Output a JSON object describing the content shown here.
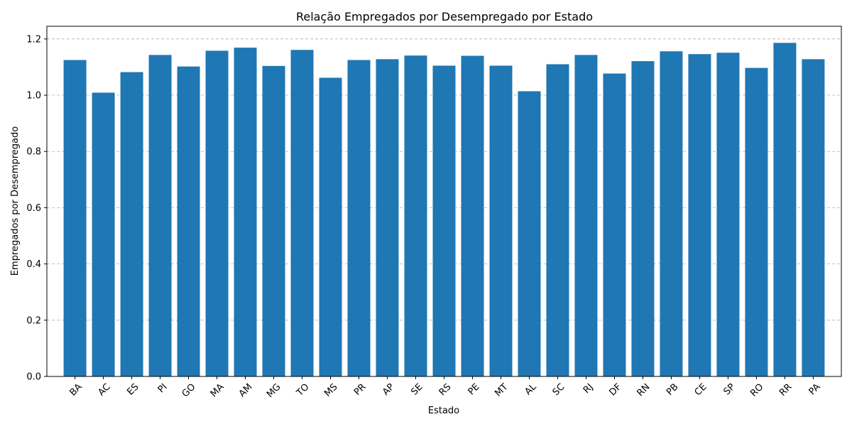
{
  "chart_data": {
    "type": "bar",
    "title": "Relação Empregados por Desempregado por Estado",
    "xlabel": "Estado",
    "ylabel": "Empregados por Desempregado",
    "categories": [
      "BA",
      "AC",
      "ES",
      "PI",
      "GO",
      "MA",
      "AM",
      "MG",
      "TO",
      "MS",
      "PR",
      "AP",
      "SE",
      "RS",
      "PE",
      "MT",
      "AL",
      "SC",
      "RJ",
      "DF",
      "RN",
      "PB",
      "CE",
      "SP",
      "RO",
      "RR",
      "PA"
    ],
    "values": [
      1.125,
      1.009,
      1.082,
      1.143,
      1.102,
      1.158,
      1.169,
      1.104,
      1.161,
      1.062,
      1.125,
      1.128,
      1.141,
      1.105,
      1.14,
      1.105,
      1.014,
      1.11,
      1.143,
      1.077,
      1.121,
      1.156,
      1.146,
      1.151,
      1.097,
      1.186,
      1.128
    ],
    "ylim": [
      0,
      1.245
    ],
    "yticks": [
      0.0,
      0.2,
      0.4,
      0.6,
      0.8,
      1.0,
      1.2
    ],
    "ytick_labels": [
      "0.0",
      "0.2",
      "0.4",
      "0.6",
      "0.8",
      "1.0",
      "1.2"
    ],
    "grid": "y-dashed",
    "bar_color": "#1f77b4",
    "grid_color": "#b0b0b0"
  }
}
